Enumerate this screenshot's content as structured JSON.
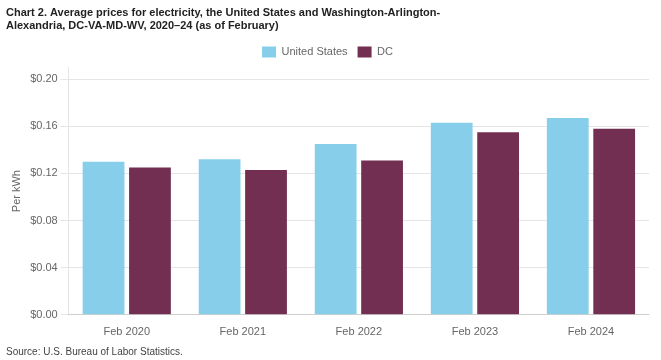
{
  "chart_data": {
    "type": "bar",
    "title": [
      "Chart 2. Average prices for electricity, the United States and Washington-Arlington-",
      "Alexandria, DC-VA-MD-WV, 2020–24 (as of February)"
    ],
    "ylabel": "Per kWh",
    "source": "Source: U.S. Bureau of Labor Statistics.",
    "categories": [
      "Feb 2020",
      "Feb 2021",
      "Feb 2022",
      "Feb 2023",
      "Feb 2024"
    ],
    "series": [
      {
        "name": "United States",
        "color": "#87CEEB",
        "values": [
          0.13,
          0.132,
          0.145,
          0.163,
          0.167
        ]
      },
      {
        "name": "DC",
        "color": "#722F52",
        "values": [
          0.125,
          0.123,
          0.131,
          0.155,
          0.158
        ]
      }
    ],
    "ylim": [
      0.0,
      0.21
    ],
    "yticks": [
      {
        "value": 0.0,
        "label": "$0.00"
      },
      {
        "value": 0.04,
        "label": "$0.04"
      },
      {
        "value": 0.08,
        "label": "$0.08"
      },
      {
        "value": 0.12,
        "label": "$0.12"
      },
      {
        "value": 0.16,
        "label": "$0.16"
      },
      {
        "value": 0.2,
        "label": "$0.20"
      }
    ],
    "grid": true,
    "legend": "top"
  }
}
